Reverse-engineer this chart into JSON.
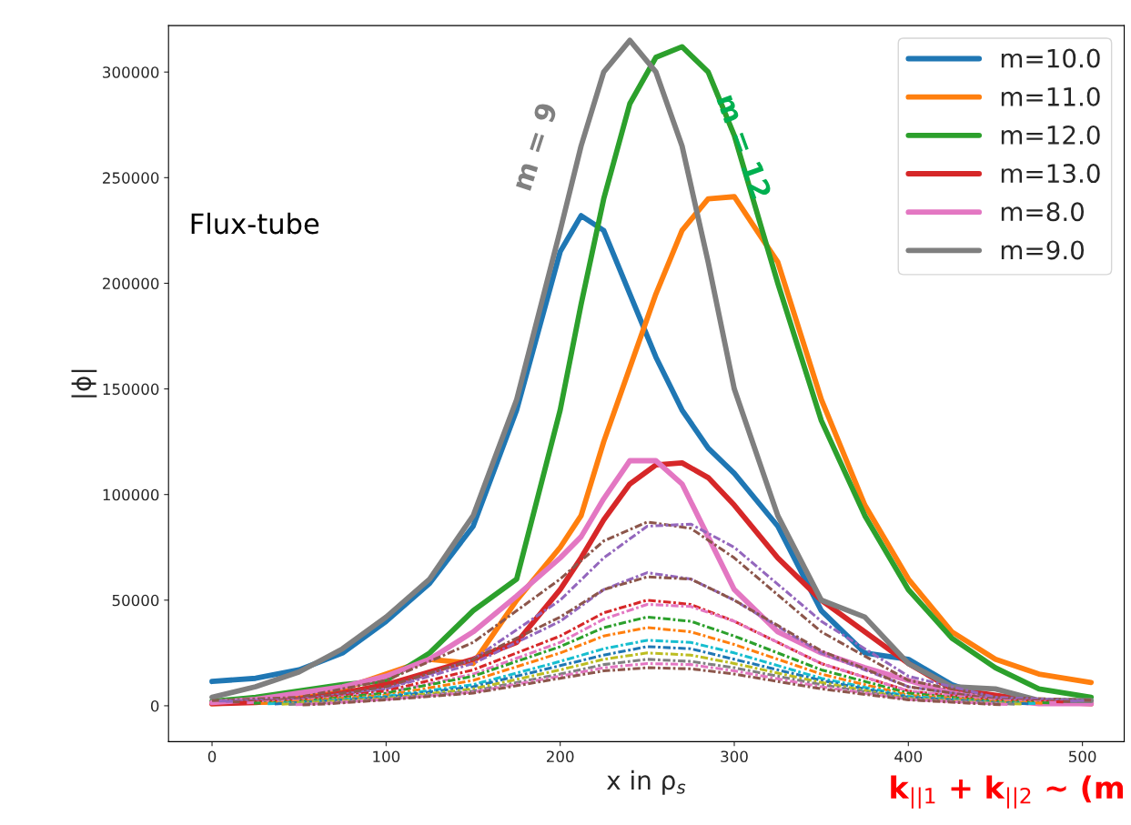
{
  "chart_data": {
    "type": "line",
    "xlabel": "x in ρ$_{s}$",
    "ylabel": "|ϕ|",
    "xlim": [
      -25,
      524
    ],
    "ylim": [
      -17000,
      322000
    ],
    "xticks": [
      0,
      100,
      200,
      300,
      400,
      500
    ],
    "yticks": [
      0,
      50000,
      100000,
      150000,
      200000,
      250000,
      300000
    ],
    "grid": false,
    "legend": "top right",
    "annotations": [
      "Flux-tube",
      "m = 9",
      "m = 12",
      "k$_{||1}$ + k$_{||2}$ ~ (m"
    ],
    "x": [
      0,
      25,
      50,
      75,
      100,
      125,
      150,
      175,
      200,
      212,
      225,
      240,
      255,
      270,
      285,
      300,
      325,
      350,
      375,
      400,
      425,
      450,
      475,
      505
    ],
    "series": [
      {
        "name": "m=10.0",
        "color": "#1f77b4",
        "line_style": "solid",
        "values": [
          11500,
          13000,
          17000,
          25000,
          40000,
          58000,
          85000,
          140000,
          215000,
          232000,
          225000,
          195000,
          165000,
          140000,
          122000,
          110000,
          85000,
          45000,
          25000,
          22000,
          10000,
          3000,
          null,
          null
        ]
      },
      {
        "name": "m=11.0",
        "color": "#ff7f0e",
        "line_style": "solid",
        "values": [
          1000,
          2000,
          5000,
          8000,
          15000,
          22000,
          20000,
          50000,
          75000,
          90000,
          125000,
          160000,
          195000,
          225000,
          240000,
          241000,
          210000,
          145000,
          95000,
          60000,
          35000,
          22000,
          15000,
          11000
        ]
      },
      {
        "name": "m=12.0",
        "color": "#2ca02c",
        "line_style": "solid",
        "values": [
          2000,
          4000,
          7000,
          10000,
          12000,
          25000,
          45000,
          60000,
          140000,
          190000,
          240000,
          285000,
          307000,
          312000,
          300000,
          270000,
          200000,
          135000,
          90000,
          55000,
          32000,
          18000,
          8000,
          4000
        ]
      },
      {
        "name": "m=13.0",
        "color": "#d62728",
        "line_style": "solid",
        "values": [
          1000,
          1500,
          3000,
          6000,
          10000,
          16000,
          22000,
          30000,
          55000,
          70000,
          88000,
          105000,
          114000,
          115000,
          108000,
          95000,
          70000,
          50000,
          35000,
          20000,
          8000,
          5000,
          2000,
          1000
        ]
      },
      {
        "name": "m=8.0",
        "color": "#e377c2",
        "line_style": "solid",
        "values": [
          1500,
          3000,
          6000,
          9000,
          14000,
          22000,
          35000,
          52000,
          70000,
          80000,
          98000,
          116000,
          116000,
          105000,
          80000,
          55000,
          35000,
          25000,
          18000,
          12000,
          6000,
          3000,
          1000,
          1000
        ]
      },
      {
        "name": "m=9.0",
        "color": "#7f7f7f",
        "line_style": "solid",
        "values": [
          4000,
          9000,
          16000,
          27000,
          42000,
          60000,
          90000,
          145000,
          225000,
          265000,
          300000,
          315000,
          300000,
          265000,
          210000,
          150000,
          90000,
          50000,
          42000,
          20000,
          9000,
          8000,
          2500,
          2500
        ]
      },
      {
        "color": "#8c564b",
        "line_style": "dashdot",
        "x": [
          0,
          50,
          100,
          150,
          200,
          225,
          250,
          275,
          300,
          350,
          400,
          450,
          505
        ],
        "values": [
          2400,
          4000,
          12000,
          30000,
          60000,
          78000,
          87000,
          84000,
          70000,
          35000,
          12000,
          4000,
          2600
        ]
      },
      {
        "color": "#9467bd",
        "line_style": "dashdot",
        "x": [
          4,
          50,
          100,
          150,
          200,
          225,
          250,
          275,
          300,
          350,
          400,
          450,
          501
        ],
        "values": [
          2200,
          3000,
          8000,
          22000,
          50000,
          70000,
          85000,
          86000,
          75000,
          40000,
          14000,
          4000,
          2400
        ]
      },
      {
        "color": "#9467bd",
        "line_style": "dashdot",
        "x": [
          8,
          50,
          100,
          150,
          200,
          225,
          250,
          275,
          300,
          350,
          400,
          450,
          497
        ],
        "values": [
          2000,
          3000,
          8000,
          20000,
          40000,
          55000,
          63000,
          60000,
          50000,
          25000,
          9000,
          3000,
          2200
        ]
      },
      {
        "color": "#8c564b",
        "line_style": "dashdot",
        "x": [
          12,
          50,
          100,
          150,
          200,
          225,
          250,
          275,
          300,
          350,
          400,
          450,
          493
        ],
        "values": [
          1800,
          3000,
          9000,
          22000,
          42000,
          55000,
          61000,
          60000,
          50000,
          26000,
          9000,
          3000,
          2000
        ]
      },
      {
        "color": "#d62728",
        "line_style": "dashdot",
        "x": [
          16,
          50,
          100,
          150,
          200,
          225,
          250,
          275,
          300,
          350,
          400,
          450,
          489
        ],
        "values": [
          1600,
          2500,
          7000,
          17000,
          33000,
          44000,
          50000,
          48000,
          40000,
          20000,
          7000,
          2500,
          1800
        ]
      },
      {
        "color": "#e377c2",
        "line_style": "dashdot",
        "x": [
          20,
          50,
          100,
          150,
          200,
          225,
          250,
          275,
          300,
          350,
          400,
          450,
          485
        ],
        "values": [
          1400,
          2500,
          6000,
          15000,
          30000,
          41000,
          48000,
          47000,
          40000,
          20000,
          7000,
          2500,
          1600
        ]
      },
      {
        "color": "#2ca02c",
        "line_style": "dashdot",
        "x": [
          24,
          50,
          100,
          150,
          200,
          225,
          250,
          275,
          300,
          350,
          400,
          450,
          481
        ],
        "values": [
          1200,
          2000,
          6000,
          14000,
          28000,
          37000,
          42000,
          40000,
          33000,
          17000,
          6000,
          2000,
          1400
        ]
      },
      {
        "color": "#ff7f0e",
        "line_style": "dashdot",
        "x": [
          28,
          50,
          100,
          150,
          200,
          225,
          250,
          275,
          300,
          350,
          400,
          450,
          477
        ],
        "values": [
          1000,
          2000,
          5000,
          12000,
          25000,
          33000,
          37000,
          35000,
          29000,
          15000,
          5000,
          2000,
          1200
        ]
      },
      {
        "color": "#17becf",
        "line_style": "dashdot",
        "x": [
          32,
          50,
          100,
          150,
          200,
          225,
          250,
          275,
          300,
          350,
          400,
          450,
          473
        ],
        "values": [
          900,
          1500,
          4500,
          10000,
          21000,
          27000,
          31000,
          30000,
          25000,
          13000,
          4500,
          1500,
          1000
        ]
      },
      {
        "color": "#1f77b4",
        "line_style": "dashdot",
        "x": [
          36,
          50,
          100,
          150,
          200,
          225,
          250,
          275,
          300,
          350,
          400,
          450,
          469
        ],
        "values": [
          800,
          1500,
          4000,
          9000,
          19000,
          24000,
          28000,
          27000,
          22000,
          12000,
          4000,
          1500,
          900
        ]
      },
      {
        "color": "#bcbd22",
        "line_style": "dashdot",
        "x": [
          40,
          50,
          100,
          150,
          200,
          225,
          250,
          275,
          300,
          350,
          400,
          450,
          465
        ],
        "values": [
          700,
          1300,
          3500,
          8000,
          17000,
          22000,
          25000,
          24000,
          20000,
          11000,
          3500,
          1300,
          800
        ]
      },
      {
        "color": "#7f7f7f",
        "line_style": "dashdot",
        "x": [
          44,
          60,
          100,
          150,
          200,
          225,
          250,
          275,
          300,
          350,
          400,
          450,
          461
        ],
        "values": [
          600,
          1200,
          3200,
          7000,
          15000,
          19500,
          22000,
          21000,
          18000,
          10000,
          3200,
          1200,
          700
        ]
      },
      {
        "color": "#e377c2",
        "line_style": "dashdot",
        "x": [
          48,
          64,
          100,
          150,
          200,
          225,
          250,
          275,
          300,
          350,
          400,
          445,
          457
        ],
        "values": [
          500,
          1100,
          3000,
          6500,
          14000,
          18000,
          20000,
          19500,
          16500,
          9000,
          3000,
          1100,
          600
        ]
      },
      {
        "color": "#8c564b",
        "line_style": "dashdot",
        "x": [
          52,
          68,
          100,
          150,
          200,
          225,
          250,
          275,
          300,
          350,
          400,
          440,
          453
        ],
        "values": [
          400,
          1000,
          2800,
          6000,
          13000,
          16500,
          18000,
          17500,
          15000,
          8000,
          2800,
          1000,
          500
        ]
      }
    ]
  }
}
